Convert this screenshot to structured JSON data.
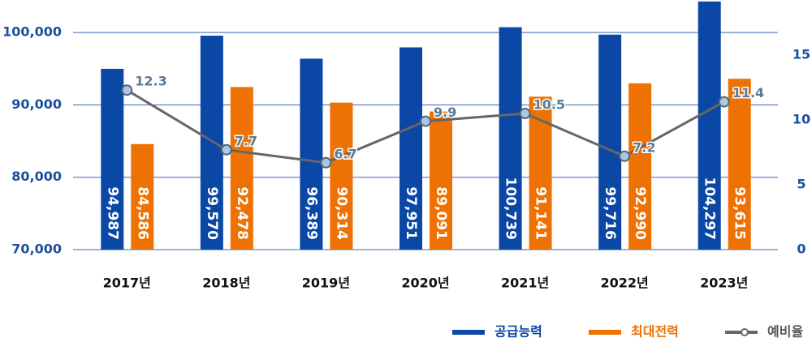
{
  "chart_data": {
    "type": "bar_line",
    "categories": [
      "2017년",
      "2018년",
      "2019년",
      "2020년",
      "2021년",
      "2022년",
      "2023년"
    ],
    "series": [
      {
        "name": "공급능력",
        "color": "#0b47a5",
        "values": [
          94987,
          99570,
          96389,
          97951,
          100739,
          99716,
          104297
        ],
        "value_labels": [
          "94,987",
          "99,570",
          "96,389",
          "97,951",
          "100,739",
          "99,716",
          "104,297"
        ]
      },
      {
        "name": "최대전력",
        "color": "#ee7203",
        "values": [
          84586,
          92478,
          90314,
          89091,
          91141,
          92990,
          93615
        ],
        "value_labels": [
          "84,586",
          "92,478",
          "90,314",
          "89,091",
          "91,141",
          "92,990",
          "93,615"
        ]
      },
      {
        "name": "예비율",
        "color": "#666666",
        "axis": "y2",
        "values": [
          12.3,
          7.7,
          6.7,
          9.9,
          10.5,
          7.2,
          11.4
        ]
      }
    ],
    "ylim": [
      70000,
      104500
    ],
    "yticks": [
      {
        "value": 70000,
        "label": "70,000"
      },
      {
        "value": 80000,
        "label": "80,000"
      },
      {
        "value": 90000,
        "label": "90,000"
      },
      {
        "value": 100000,
        "label": "100,000"
      }
    ],
    "y2lim": [
      0,
      19.25
    ],
    "y2ticks": [
      0,
      5,
      10,
      15
    ],
    "grid": true,
    "legend": "bottom right"
  }
}
